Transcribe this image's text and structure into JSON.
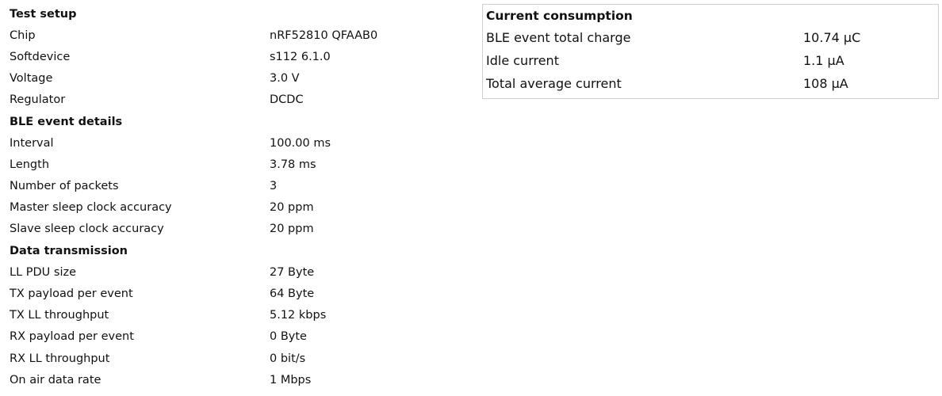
{
  "test_setup": {
    "title": "Test setup",
    "rows": [
      {
        "label": "Chip",
        "value": "nRF52810 QFAAB0"
      },
      {
        "label": "Softdevice",
        "value": "s112 6.1.0"
      },
      {
        "label": "Voltage",
        "value": "3.0 V"
      },
      {
        "label": "Regulator",
        "value": "DCDC"
      }
    ]
  },
  "ble_event": {
    "title": "BLE event details",
    "rows": [
      {
        "label": "Interval",
        "value": "100.00 ms"
      },
      {
        "label": "Length",
        "value": "3.78 ms"
      },
      {
        "label": "Number of packets",
        "value": "3"
      },
      {
        "label": "Master sleep clock accuracy",
        "value": "20 ppm"
      },
      {
        "label": "Slave sleep clock accuracy",
        "value": "20 ppm"
      }
    ]
  },
  "data_transmission": {
    "title": "Data transmission",
    "rows": [
      {
        "label": "LL PDU size",
        "value": "27 Byte"
      },
      {
        "label": "TX payload per event",
        "value": "64 Byte"
      },
      {
        "label": "TX LL throughput",
        "value": "5.12 kbps"
      },
      {
        "label": "RX payload per event",
        "value": "0 Byte"
      },
      {
        "label": "RX LL throughput",
        "value": "0 bit/s"
      },
      {
        "label": "On air data rate",
        "value": "1 Mbps"
      }
    ]
  },
  "current_consumption": {
    "title": "Current consumption",
    "rows": [
      {
        "label": "BLE event total charge",
        "value": "10.74 µC"
      },
      {
        "label": "Idle current",
        "value": "1.1 µA"
      },
      {
        "label": "Total average current",
        "value": "108 µA"
      }
    ]
  }
}
